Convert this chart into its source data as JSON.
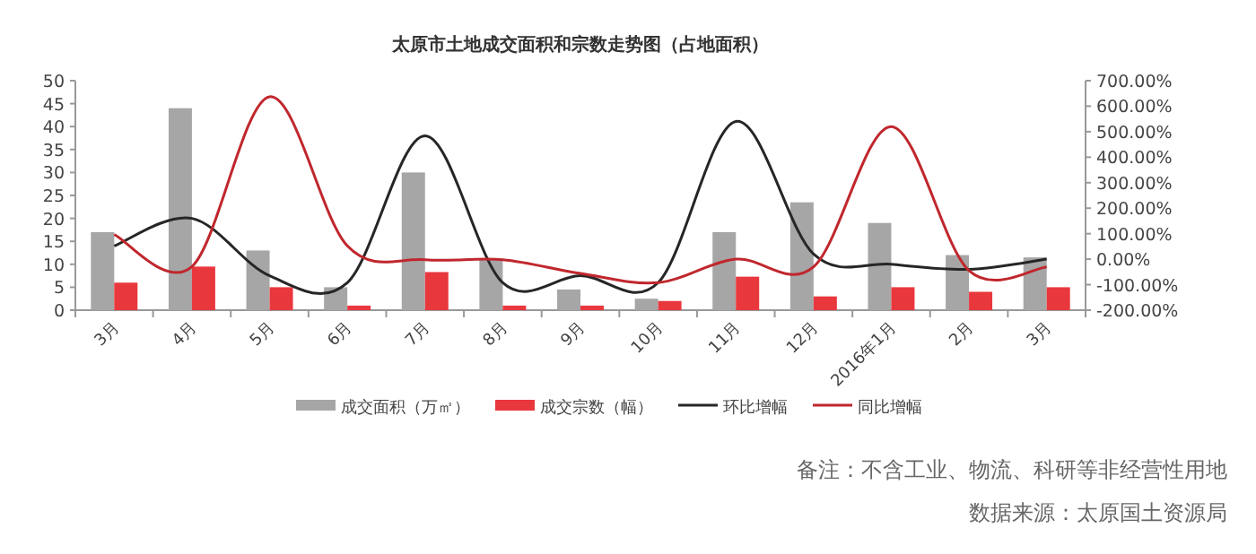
{
  "chart_data": {
    "type": "bar",
    "title": "太原市土地成交面积和宗数走势图（占地面积）",
    "categories": [
      "3月",
      "4月",
      "5月",
      "6月",
      "7月",
      "8月",
      "9月",
      "10月",
      "11月",
      "12月",
      "2016年1月",
      "2月",
      "3月"
    ],
    "series": [
      {
        "name": "成交面积（万㎡）",
        "color": "#a6a6a6",
        "values": [
          17,
          44,
          13,
          5,
          30,
          11,
          4.5,
          2.5,
          17,
          23.5,
          19,
          12,
          11.5
        ]
      },
      {
        "name": "成交宗数（幅）",
        "color": "#e8383d",
        "values": [
          6,
          9.5,
          5,
          1,
          8.3,
          1,
          1,
          2,
          7.3,
          3,
          5,
          4,
          5
        ]
      },
      {
        "name": "环比增幅",
        "type": "line",
        "axis": "y2",
        "color": "#262626",
        "values": [
          52,
          160,
          -65,
          -92,
          484,
          -92,
          -65,
          -92,
          540,
          20,
          -20,
          -40,
          0
        ]
      },
      {
        "name": "同比增幅",
        "type": "line",
        "axis": "y2",
        "color": "#c0272d",
        "values": [
          97,
          -29,
          637,
          52,
          -2,
          -2,
          -56,
          -92,
          0,
          -30,
          520,
          -45,
          -30
        ]
      }
    ],
    "ylim": [
      0,
      50
    ],
    "yticks": [
      0,
      5,
      10,
      15,
      20,
      25,
      30,
      35,
      40,
      45,
      50
    ],
    "y2lim": [
      -200,
      700
    ],
    "y2ticks": [
      {
        "value": -200,
        "label": "-200.00%"
      },
      {
        "value": -100,
        "label": "-100.00%"
      },
      {
        "value": 0,
        "label": "0.00%"
      },
      {
        "value": 100,
        "label": "100.00%"
      },
      {
        "value": 200,
        "label": "200.00%"
      },
      {
        "value": 300,
        "label": "300.00%"
      },
      {
        "value": 400,
        "label": "400.00%"
      },
      {
        "value": 500,
        "label": "500.00%"
      },
      {
        "value": 600,
        "label": "600.00%"
      },
      {
        "value": 700,
        "label": "700.00%"
      }
    ],
    "legend": "bottom",
    "grid": false,
    "marker": "none",
    "line_style": "solid",
    "annotations": [
      "备注：不含工业、物流、科研等非经营性用地",
      "数据来源：太原国土资源局"
    ]
  }
}
